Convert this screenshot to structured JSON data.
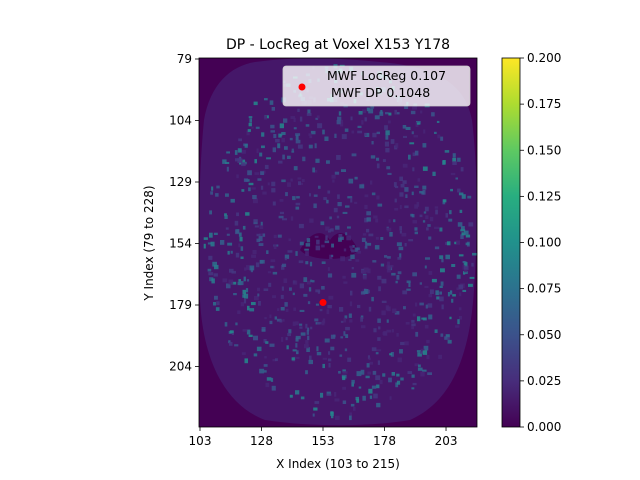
{
  "chart_data": {
    "type": "heatmap",
    "title": "DP - LocReg at Voxel X153 Y178",
    "xlabel": "X Index (103 to 215)",
    "ylabel": "Y Index (79 to 228)",
    "x_range": [
      103,
      215
    ],
    "y_range": [
      79,
      228
    ],
    "x_ticks": [
      103,
      128,
      153,
      178,
      203
    ],
    "y_ticks": [
      79,
      104,
      129,
      154,
      179,
      204
    ],
    "colormap": "viridis",
    "colorbar": {
      "min": 0.0,
      "max": 0.2,
      "ticks": [
        "0.000",
        "0.025",
        "0.050",
        "0.075",
        "0.100",
        "0.125",
        "0.150",
        "0.175",
        "0.200"
      ]
    },
    "marker": {
      "x": 153,
      "y": 178,
      "color": "#ff0000"
    },
    "legend": {
      "position": "top-right",
      "lines": [
        "MWF LocReg 0.107",
        " MWF DP 0.1048"
      ]
    },
    "grid": false
  }
}
